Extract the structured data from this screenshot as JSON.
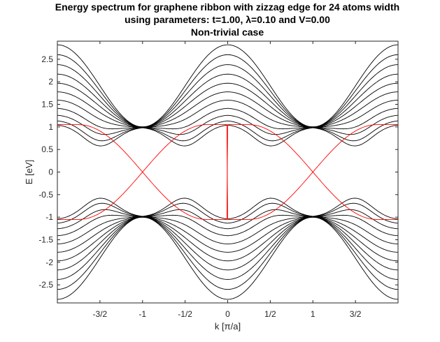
{
  "chart_data": {
    "type": "line",
    "title": [
      "Energy spectrum for graphene ribbon with zizzag edge for 24 atoms width",
      "using parameters: t=1.00, λ=0.10 and V=0.00",
      "Non-trivial case"
    ],
    "xlabel": "k [π/a]",
    "ylabel": "E [eV]",
    "xlim": [
      -2,
      2
    ],
    "ylim": [
      -2.9,
      2.9
    ],
    "xticks": [
      {
        "value": -1.5,
        "label": "-3/2"
      },
      {
        "value": -1,
        "label": "-1"
      },
      {
        "value": -0.5,
        "label": "-1/2"
      },
      {
        "value": 0,
        "label": "0"
      },
      {
        "value": 0.5,
        "label": "1/2"
      },
      {
        "value": 1,
        "label": "1"
      },
      {
        "value": 1.5,
        "label": "3/2"
      }
    ],
    "yticks": [
      {
        "value": 2.5,
        "label": "2.5"
      },
      {
        "value": 2,
        "label": "2"
      },
      {
        "value": 1.5,
        "label": "1.5"
      },
      {
        "value": 1,
        "label": "1"
      },
      {
        "value": 0.5,
        "label": "0.5"
      },
      {
        "value": 0,
        "label": "0"
      },
      {
        "value": -0.5,
        "label": "-0.5"
      },
      {
        "value": -1,
        "label": "-1"
      },
      {
        "value": -1.5,
        "label": "-1.5"
      },
      {
        "value": -2,
        "label": "-2"
      },
      {
        "value": -2.5,
        "label": "-2.5"
      }
    ],
    "grid": false,
    "bulk_band_color": "#000000",
    "edge_state_color": "#ff0000",
    "model": {
      "hopping_t": 1.0,
      "spin_orbit_lambda": 0.1,
      "potential_V": 0.0,
      "ribbon_width_atoms": 24,
      "edge": "zigzag"
    },
    "bulk_bands": {
      "count_per_sign": 11,
      "band_top_at_k0": [
        1.06,
        1.15,
        1.27,
        1.42,
        1.6,
        1.78,
        1.97,
        2.17,
        2.38,
        2.6,
        2.82
      ],
      "band_min_near_k1": [
        0.55,
        0.62,
        0.71,
        0.79,
        0.87,
        0.93,
        0.97,
        0.99,
        1.0,
        1.0,
        1.0
      ],
      "note": "bands are symmetric in E (negative copies) and periodic in k with period 2"
    },
    "edge_states": {
      "plateau_energy": 1.05,
      "crossing_energy": 0,
      "crossing_k": [
        -1,
        1
      ],
      "plateau_k_ranges": [
        [
          -2,
          -1.75
        ],
        [
          -0.25,
          0.25
        ],
        [
          1.75,
          2
        ]
      ]
    }
  }
}
